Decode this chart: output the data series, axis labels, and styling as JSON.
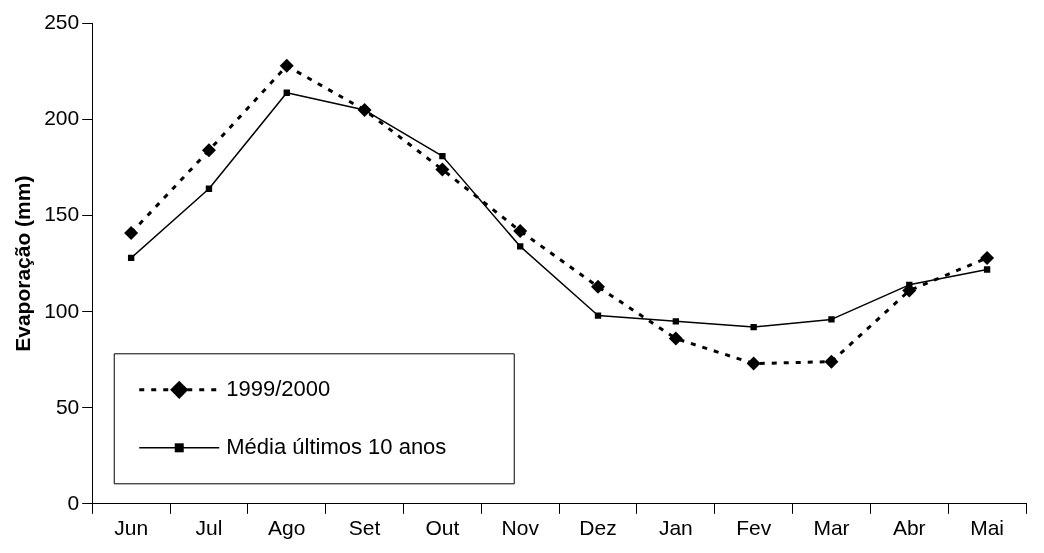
{
  "chart_data": {
    "type": "line",
    "ylabel": "Evaporação (mm)",
    "categories": [
      "Jun",
      "Jul",
      "Ago",
      "Set",
      "Out",
      "Nov",
      "Dez",
      "Jan",
      "Fev",
      "Mar",
      "Abr",
      "Mai"
    ],
    "series": [
      {
        "name": "1999/2000",
        "color": "#000000",
        "marker": "diamond",
        "line_style": "dotted",
        "values": [
          141,
          184,
          228,
          205,
          174,
          142,
          113,
          86,
          73,
          74,
          111,
          128
        ]
      },
      {
        "name": "Média últimos 10 anos",
        "color": "#000000",
        "marker": "square",
        "line_style": "solid",
        "values": [
          128,
          164,
          214,
          205,
          181,
          134,
          98,
          95,
          92,
          96,
          114,
          122
        ]
      }
    ],
    "ylim": [
      0,
      250
    ],
    "yticks": [
      0,
      50,
      100,
      150,
      200,
      250
    ],
    "grid": false,
    "legend": "bottom left"
  }
}
